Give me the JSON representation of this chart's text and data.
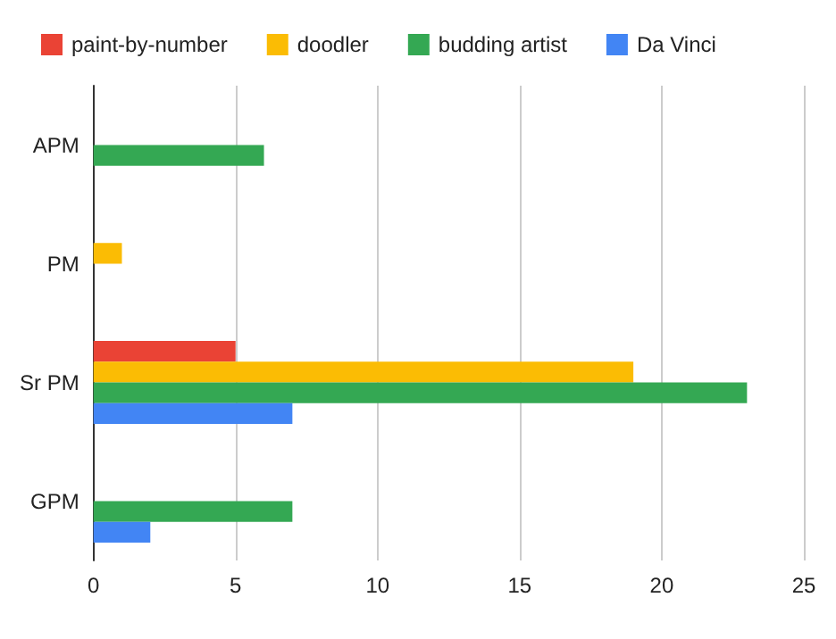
{
  "chart_data": {
    "type": "bar",
    "orientation": "horizontal",
    "categories": [
      "APM",
      "PM",
      "Sr PM",
      "GPM"
    ],
    "series": [
      {
        "name": "paint-by-number",
        "color": "#ea4335",
        "values": [
          null,
          null,
          5,
          null
        ]
      },
      {
        "name": "doodler",
        "color": "#fbbc04",
        "values": [
          null,
          1,
          19,
          null
        ]
      },
      {
        "name": "budding artist",
        "color": "#34a853",
        "values": [
          6,
          null,
          23,
          7
        ]
      },
      {
        "name": "Da Vinci",
        "color": "#4285f4",
        "values": [
          null,
          null,
          7,
          2
        ]
      }
    ],
    "xlim": [
      0,
      25
    ],
    "xticks": [
      0,
      5,
      10,
      15,
      20,
      25
    ],
    "grid": "x",
    "legend": "top left"
  }
}
